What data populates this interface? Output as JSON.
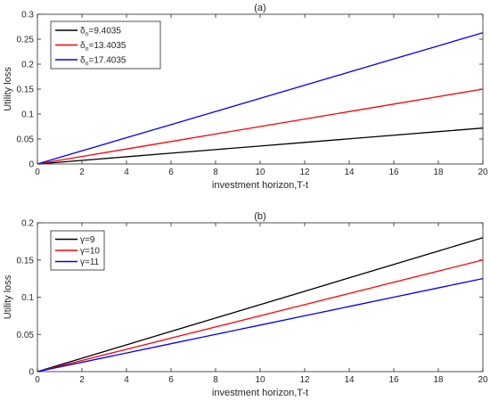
{
  "chart_data": [
    {
      "type": "line",
      "title": "(a)",
      "xlabel": "investment horizon,T-t",
      "ylabel": "Utility loss",
      "xlim": [
        0,
        20
      ],
      "ylim": [
        0,
        0.3
      ],
      "xticks": [
        0,
        2,
        4,
        6,
        8,
        10,
        12,
        14,
        16,
        18,
        20
      ],
      "yticks": [
        0,
        0.05,
        0.1,
        0.15,
        0.2,
        0.25,
        0.3
      ],
      "xtick_labels": [
        "0",
        "2",
        "4",
        "6",
        "8",
        "10",
        "12",
        "14",
        "16",
        "18",
        "20"
      ],
      "ytick_labels": [
        "0",
        "0.05",
        "0.1",
        "0.15",
        "0.2",
        "0.25",
        "0.3"
      ],
      "grid": false,
      "legend_position": "top-left",
      "series": [
        {
          "legend_symbol": "δ",
          "legend_sub": "n",
          "legend_value": "=9.4035",
          "color": "#000000",
          "x": [
            0,
            2,
            4,
            6,
            8,
            10,
            12,
            14,
            16,
            18,
            20
          ],
          "y": [
            0,
            0.0072,
            0.0144,
            0.0216,
            0.0288,
            0.036,
            0.0432,
            0.0504,
            0.0576,
            0.0648,
            0.072
          ]
        },
        {
          "legend_symbol": "δ",
          "legend_sub": "n",
          "legend_value": "=13.4035",
          "color": "#ff0000",
          "x": [
            0,
            2,
            4,
            6,
            8,
            10,
            12,
            14,
            16,
            18,
            20
          ],
          "y": [
            0,
            0.015,
            0.03,
            0.045,
            0.06,
            0.075,
            0.09,
            0.105,
            0.12,
            0.135,
            0.15
          ]
        },
        {
          "legend_symbol": "δ",
          "legend_sub": "n",
          "legend_value": "=17.4035",
          "color": "#0000ff",
          "x": [
            0,
            2,
            4,
            6,
            8,
            10,
            12,
            14,
            16,
            18,
            20
          ],
          "y": [
            0,
            0.0263,
            0.0526,
            0.0789,
            0.1052,
            0.1315,
            0.1578,
            0.1841,
            0.2104,
            0.2367,
            0.263
          ]
        }
      ]
    },
    {
      "type": "line",
      "title": "(b)",
      "xlabel": "investment horizon,T-t",
      "ylabel": "Utility loss",
      "xlim": [
        0,
        20
      ],
      "ylim": [
        0,
        0.2
      ],
      "xticks": [
        0,
        2,
        4,
        6,
        8,
        10,
        12,
        14,
        16,
        18,
        20
      ],
      "yticks": [
        0,
        0.05,
        0.1,
        0.15,
        0.2
      ],
      "xtick_labels": [
        "0",
        "2",
        "4",
        "6",
        "8",
        "10",
        "12",
        "14",
        "16",
        "18",
        "20"
      ],
      "ytick_labels": [
        "0",
        "0.05",
        "0.1",
        "0.15",
        "0.2"
      ],
      "grid": false,
      "legend_position": "top-left",
      "series": [
        {
          "legend_symbol": "γ",
          "legend_sub": "",
          "legend_value": "=9",
          "color": "#000000",
          "x": [
            0,
            2,
            4,
            6,
            8,
            10,
            12,
            14,
            16,
            18,
            20
          ],
          "y": [
            0,
            0.018,
            0.036,
            0.054,
            0.072,
            0.09,
            0.108,
            0.126,
            0.144,
            0.162,
            0.18
          ]
        },
        {
          "legend_symbol": "γ",
          "legend_sub": "",
          "legend_value": "=10",
          "color": "#ff0000",
          "x": [
            0,
            2,
            4,
            6,
            8,
            10,
            12,
            14,
            16,
            18,
            20
          ],
          "y": [
            0,
            0.015,
            0.03,
            0.045,
            0.06,
            0.075,
            0.09,
            0.105,
            0.12,
            0.135,
            0.15
          ]
        },
        {
          "legend_symbol": "γ",
          "legend_sub": "",
          "legend_value": "=11",
          "color": "#0000ff",
          "x": [
            0,
            2,
            4,
            6,
            8,
            10,
            12,
            14,
            16,
            18,
            20
          ],
          "y": [
            0,
            0.0125,
            0.025,
            0.0375,
            0.05,
            0.0625,
            0.075,
            0.0875,
            0.1,
            0.1125,
            0.125
          ]
        }
      ]
    }
  ]
}
